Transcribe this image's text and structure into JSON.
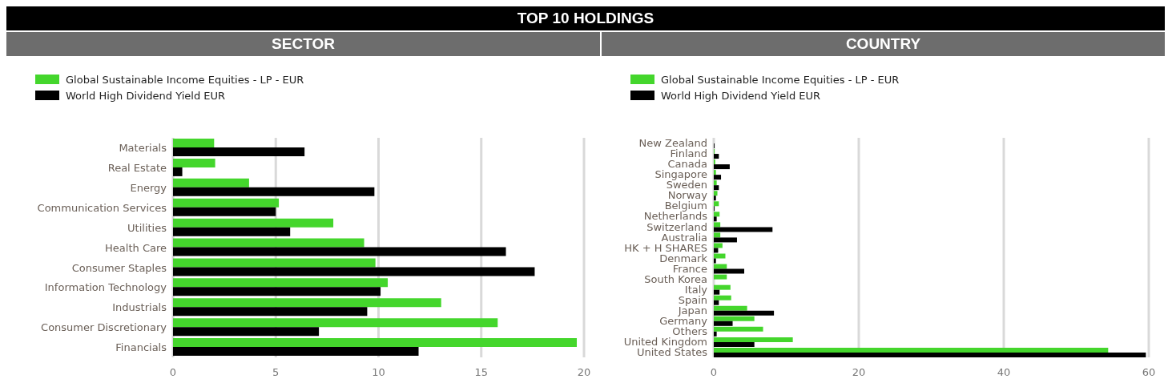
{
  "chart_data": [
    {
      "type": "bar",
      "orientation": "horizontal",
      "title": "TOP 10 HOLDINGS",
      "subtitle": "SECTOR",
      "categories": [
        "Materials",
        "Real Estate",
        "Energy",
        "Communication Services",
        "Utilities",
        "Health Care",
        "Consumer Staples",
        "Information Technology",
        "Industrials",
        "Consumer Discretionary",
        "Financials"
      ],
      "series": [
        {
          "name": "Global Sustainable Income Equities - LP - EUR",
          "color": "#44d62c",
          "values": [
            2.0,
            2.05,
            3.7,
            5.15,
            7.8,
            9.3,
            9.85,
            10.45,
            13.05,
            15.8,
            19.65
          ]
        },
        {
          "name": "World High Dividend Yield  EUR",
          "color": "#000000",
          "values": [
            6.4,
            0.45,
            9.8,
            5.0,
            5.7,
            16.2,
            17.6,
            10.1,
            9.45,
            7.1,
            11.95
          ]
        }
      ],
      "xlim": [
        0,
        20
      ],
      "xticks": [
        0,
        5,
        10,
        15,
        20
      ],
      "grid": "x",
      "legend": "top left"
    },
    {
      "type": "bar",
      "orientation": "horizontal",
      "subtitle": "COUNTRY",
      "categories": [
        "New Zealand",
        "Finland",
        "Canada",
        "Singapore",
        "Sweden",
        "Norway",
        "Belgium",
        "Netherlands",
        "Switzerland",
        "Australia",
        "HK + H SHARES",
        "Denmark",
        "France",
        "South Korea",
        "Italy",
        "Spain",
        "Japan",
        "Germany",
        "Others",
        "United Kingdom",
        "United States"
      ],
      "series": [
        {
          "name": "Global Sustainable Income Equities - LP - EUR",
          "color": "#44d62c",
          "values": [
            0,
            0.1,
            0.2,
            0.3,
            0.4,
            0.5,
            0.7,
            0.8,
            0.9,
            0.9,
            1.2,
            1.6,
            1.8,
            1.8,
            2.3,
            2.4,
            4.6,
            5.6,
            6.8,
            10.9,
            54.4
          ]
        },
        {
          "name": "World High Dividend Yield  EUR",
          "color": "#000000",
          "values": [
            0.1,
            0.7,
            2.2,
            1.0,
            0.7,
            0.3,
            0.1,
            0.4,
            8.1,
            3.2,
            0.6,
            0.3,
            4.2,
            0,
            0.8,
            0.7,
            8.3,
            2.6,
            0.4,
            5.6,
            59.6
          ]
        }
      ],
      "xlim": [
        0,
        60
      ],
      "xticks": [
        0,
        20,
        40,
        60
      ],
      "grid": "x",
      "legend": "top left"
    }
  ]
}
